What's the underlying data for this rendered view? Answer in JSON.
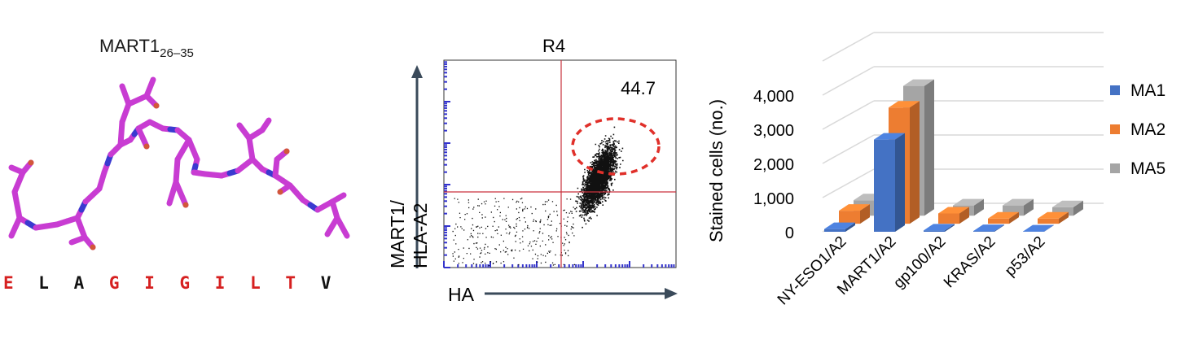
{
  "panel_a": {
    "title_main": "MART1",
    "title_sub": "26–35",
    "sequence": [
      "E",
      "L",
      "A",
      "G",
      "I",
      "G",
      "I",
      "L",
      "T",
      "V"
    ],
    "sequence_colors": [
      "#d62020",
      "#111111",
      "#111111",
      "#d62020",
      "#d62020",
      "#d62020",
      "#d62020",
      "#d62020",
      "#d62020",
      "#111111"
    ],
    "colors": {
      "backbone": "#c83cd2",
      "nitrogen": "#3a3ad0",
      "oxygen": "#d2573a"
    }
  },
  "panel_b": {
    "title": "R4",
    "gate_value": "44.7",
    "xlabel": "HA",
    "ylabel_line1": "MART1/",
    "ylabel_line2": "HLA-A2",
    "colors": {
      "quad": "#c9323d",
      "gate": "#e0302a",
      "axis": "#3a4a5a",
      "tick": "#3333cc"
    }
  },
  "chart_data": {
    "type": "bar",
    "categories": [
      "NY-ESO1/A2",
      "MART1/A2",
      "gp100/A2",
      "KRAS/A2",
      "p53/A2"
    ],
    "series": [
      {
        "name": "MA1",
        "values": [
          80,
          2700,
          40,
          20,
          10
        ],
        "color": "#4472c4"
      },
      {
        "name": "MA2",
        "values": [
          380,
          3400,
          300,
          150,
          150
        ],
        "color": "#ed7d31"
      },
      {
        "name": "MA5",
        "values": [
          450,
          3800,
          300,
          300,
          250
        ],
        "color": "#a5a5a5"
      }
    ],
    "ylabel": "Stained cells (no.)",
    "yticks": [
      "0",
      "1,000",
      "2,000",
      "3,000",
      "4,000"
    ],
    "ylim": [
      0,
      4000
    ],
    "grid": true,
    "legend": "right"
  }
}
